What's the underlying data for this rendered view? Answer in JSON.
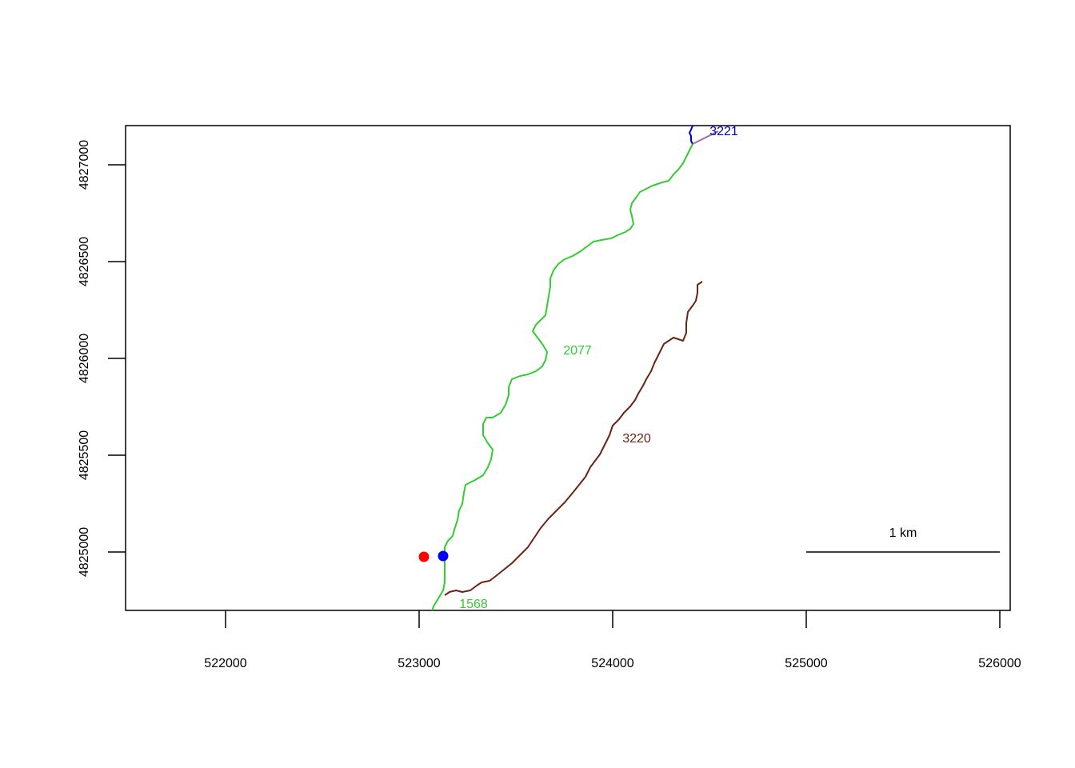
{
  "map": {
    "x_ticks": [
      "522000",
      "523000",
      "524000",
      "525000",
      "526000"
    ],
    "y_ticks": [
      "4825000",
      "4825500",
      "4826000",
      "4826500",
      "4827000"
    ],
    "scale_bar": {
      "label": "1 km"
    },
    "streams": [
      {
        "id": "2077",
        "label": "2077",
        "color": "#33cc33"
      },
      {
        "id": "3220",
        "label": "3220",
        "color": "#6b2414"
      },
      {
        "id": "3221",
        "label": "3221",
        "color": "#0000cc"
      },
      {
        "id": "1568",
        "label": "1568",
        "color": "#33cc33"
      }
    ],
    "points": [
      {
        "name": "red-point",
        "color": "#ff0000"
      },
      {
        "name": "blue-point",
        "color": "#0000ff"
      }
    ],
    "connector_color": "#a070a0"
  }
}
